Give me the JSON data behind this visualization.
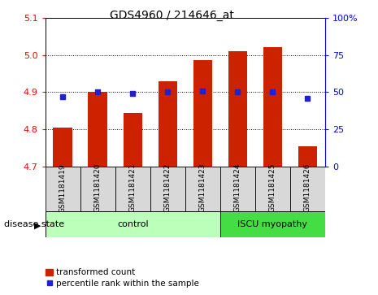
{
  "title": "GDS4960 / 214646_at",
  "samples": [
    "GSM1181419",
    "GSM1181420",
    "GSM1181421",
    "GSM1181422",
    "GSM1181423",
    "GSM1181424",
    "GSM1181425",
    "GSM1181426"
  ],
  "bar_values": [
    4.805,
    4.9,
    4.845,
    4.93,
    4.985,
    5.01,
    5.02,
    4.755
  ],
  "percentile_values": [
    47,
    50,
    49,
    50,
    51,
    50,
    50,
    46
  ],
  "ylim_left": [
    4.7,
    5.1
  ],
  "ylim_right": [
    0,
    100
  ],
  "bar_color": "#cc2200",
  "dot_color": "#2222cc",
  "bar_bottom": 4.7,
  "control_indices": [
    0,
    1,
    2,
    3,
    4
  ],
  "disease_indices": [
    5,
    6,
    7
  ],
  "control_label": "control",
  "disease_label": "ISCU myopathy",
  "control_color": "#bbffbb",
  "disease_color": "#44dd44",
  "xlabel_label": "disease state",
  "yticks_left": [
    4.7,
    4.8,
    4.9,
    5.0,
    5.1
  ],
  "yticks_right": [
    0,
    25,
    50,
    75,
    100
  ],
  "legend_bar_label": "transformed count",
  "legend_dot_label": "percentile rank within the sample",
  "grid_color": "#000000",
  "sample_bg_color": "#d8d8d8"
}
